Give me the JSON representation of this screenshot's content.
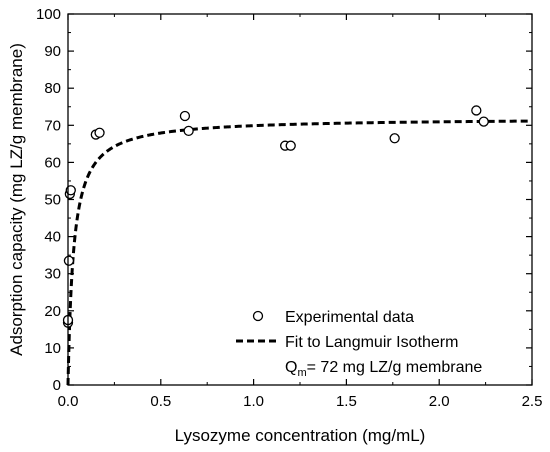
{
  "chart_data": {
    "type": "scatter",
    "xlabel": "Lysozyme concentration (mg/mL)",
    "ylabel": "Adsorption capacity (mg LZ/g membrane)",
    "xlim": [
      0,
      2.5
    ],
    "ylim": [
      0,
      100
    ],
    "x_ticks": [
      0.0,
      0.5,
      1.0,
      1.5,
      2.0,
      2.5
    ],
    "x_tick_labels": [
      "0.0",
      "0.5",
      "1.0",
      "1.5",
      "2.0",
      "2.5"
    ],
    "y_ticks": [
      0,
      10,
      20,
      30,
      40,
      50,
      60,
      70,
      80,
      90,
      100
    ],
    "y_tick_labels": [
      "0",
      "10",
      "20",
      "30",
      "40",
      "50",
      "60",
      "70",
      "80",
      "90",
      "100"
    ],
    "grid": false,
    "legend_position": "bottom-right",
    "series": [
      {
        "name": "Experimental data",
        "kind": "scatter",
        "marker": "open-circle",
        "points": [
          {
            "x": 0.0,
            "y": 16.8
          },
          {
            "x": 0.0,
            "y": 17.5
          },
          {
            "x": 0.005,
            "y": 33.5
          },
          {
            "x": 0.01,
            "y": 51.5
          },
          {
            "x": 0.015,
            "y": 52.5
          },
          {
            "x": 0.15,
            "y": 67.5
          },
          {
            "x": 0.17,
            "y": 68.0
          },
          {
            "x": 0.63,
            "y": 72.5
          },
          {
            "x": 0.65,
            "y": 68.5
          },
          {
            "x": 1.17,
            "y": 64.5
          },
          {
            "x": 1.2,
            "y": 64.5
          },
          {
            "x": 1.76,
            "y": 66.5
          },
          {
            "x": 2.2,
            "y": 74.0
          },
          {
            "x": 2.24,
            "y": 71.0
          }
        ]
      },
      {
        "name": "Fit to Langmuir Isotherm",
        "kind": "line",
        "style": "dashed",
        "model": "langmuir",
        "qm": 72,
        "kd": 0.03,
        "x_range": [
          0,
          2.5
        ]
      }
    ],
    "legend_note": {
      "prefix": "Q",
      "subscript": "m",
      "suffix": "= 72 mg LZ/g membrane"
    },
    "colors": {
      "axis": "#000000",
      "marker_stroke": "#000000",
      "fit_line": "#000000"
    }
  }
}
